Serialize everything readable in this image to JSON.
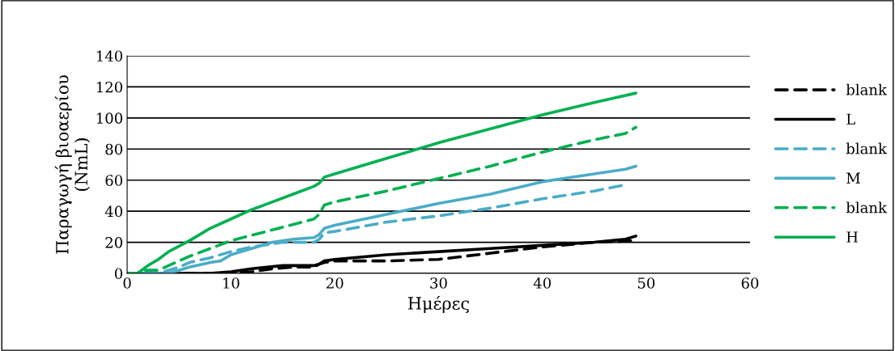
{
  "chart_data": {
    "type": "line",
    "xlabel": "Ημέρες",
    "ylabel": "Παραγωγή βιοαερίου\n(NmL)",
    "xlim": [
      0,
      60
    ],
    "xticks": [
      0,
      10,
      20,
      30,
      40,
      50,
      60
    ],
    "ylim": [
      0,
      140
    ],
    "yticks": [
      0,
      20,
      40,
      60,
      80,
      100,
      120,
      140
    ],
    "grid": "y",
    "legend": "right",
    "marker": "none",
    "series": [
      {
        "name": "blank",
        "color": "#000000",
        "line_style": "dashed",
        "x": [
          0,
          9,
          12,
          14,
          16,
          18,
          18.5,
          19,
          20,
          25,
          30,
          35,
          40,
          45,
          49
        ],
        "values": [
          0,
          0,
          1,
          3,
          4,
          4,
          6,
          7,
          8,
          8,
          9,
          13,
          17,
          20,
          21
        ]
      },
      {
        "name": "L",
        "color": "#000000",
        "line_style": "solid",
        "x": [
          0,
          8,
          10,
          12,
          15,
          18,
          18.5,
          19,
          20,
          25,
          30,
          35,
          40,
          45,
          48,
          49
        ],
        "values": [
          0,
          0,
          1,
          3,
          5,
          5,
          6,
          8,
          9,
          12,
          14,
          16,
          18,
          20,
          22,
          24
        ]
      },
      {
        "name": "blank",
        "color": "#4bacc6",
        "line_style": "dashed",
        "x": [
          0,
          3,
          5,
          6,
          8,
          10,
          12,
          15,
          18,
          18.5,
          19,
          20,
          25,
          30,
          35,
          40,
          45,
          48
        ],
        "values": [
          0,
          0,
          4,
          7,
          10,
          14,
          17,
          20,
          20,
          22,
          26,
          27,
          33,
          37,
          42,
          48,
          53,
          57
        ]
      },
      {
        "name": "M",
        "color": "#4bacc6",
        "line_style": "solid",
        "x": [
          0,
          4,
          6,
          8,
          9,
          10,
          12,
          14,
          16,
          18,
          18.5,
          19,
          20,
          25,
          30,
          35,
          40,
          45,
          48,
          49
        ],
        "values": [
          0,
          0,
          4,
          7,
          8,
          12,
          16,
          20,
          22,
          23,
          25,
          29,
          31,
          38,
          45,
          51,
          59,
          64,
          67,
          69
        ]
      },
      {
        "name": "blank",
        "color": "#00b050",
        "line_style": "dashed",
        "x": [
          0,
          1,
          1.5,
          3,
          4,
          6,
          8,
          10,
          14,
          18,
          18.5,
          19,
          20,
          25,
          30,
          35,
          40,
          45,
          48,
          49
        ],
        "values": [
          0,
          0,
          2,
          2,
          5,
          11,
          16,
          21,
          28,
          35,
          38,
          44,
          46,
          53,
          61,
          69,
          78,
          86,
          90,
          94
        ]
      },
      {
        "name": "H",
        "color": "#00b050",
        "line_style": "solid",
        "x": [
          0,
          1,
          2,
          3,
          4,
          6,
          8,
          10,
          12,
          14,
          16,
          18,
          18.5,
          19,
          20,
          25,
          30,
          35,
          40,
          45,
          49
        ],
        "values": [
          0,
          0,
          5,
          9,
          14,
          21,
          29,
          35,
          41,
          46,
          51,
          56,
          58,
          62,
          64,
          74,
          84,
          93,
          102,
          110,
          116
        ]
      }
    ]
  }
}
